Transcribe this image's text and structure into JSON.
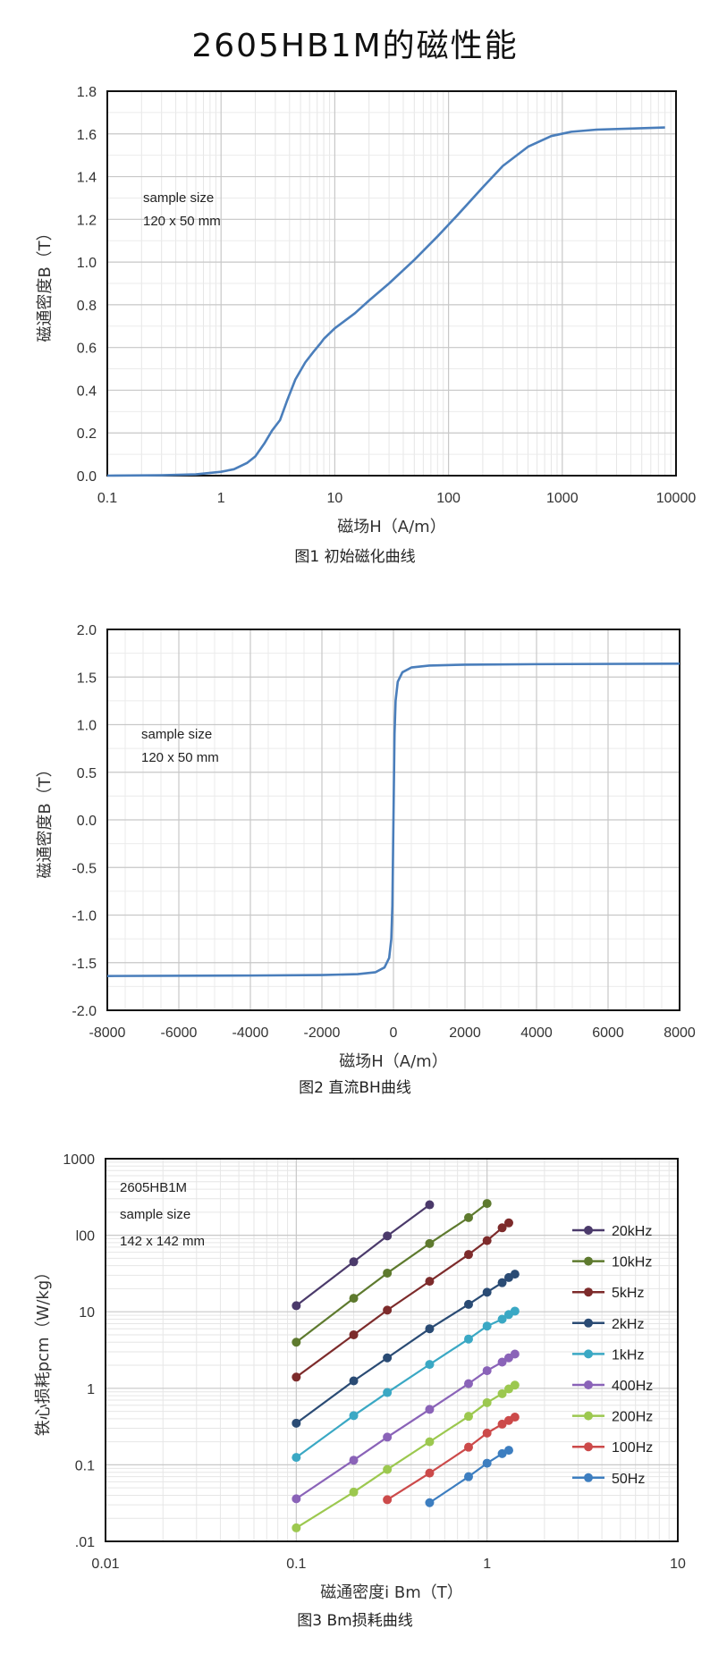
{
  "page": {
    "title": "2605HB1M的磁性能"
  },
  "chart_data": [
    {
      "id": "chart1",
      "type": "line",
      "caption": "图1 初始磁化曲线",
      "xlabel": "磁场H（A/m）",
      "ylabel": "磁通密度B（T）",
      "xscale": "log",
      "xlim": [
        0.1,
        10000
      ],
      "ylim": [
        0,
        1.8
      ],
      "xticks": [
        0.1,
        1,
        10,
        100,
        1000,
        10000
      ],
      "xtick_labels": [
        "0.1",
        "1",
        "10",
        "100",
        "1000",
        "10000"
      ],
      "yticks": [
        0,
        0.2,
        0.4,
        0.6,
        0.8,
        1.0,
        1.2,
        1.4,
        1.6,
        1.8
      ],
      "ytick_labels": [
        "0.0",
        "0.2",
        "0.4",
        "0.6",
        "0.8",
        "1.0",
        "1.2",
        "1.4",
        "1.6",
        "1.8"
      ],
      "grid": true,
      "note": [
        "sample size",
        "120 x 50 mm"
      ],
      "series": [
        {
          "color": "#4a7ebb",
          "x": [
            0.1,
            0.3,
            0.6,
            1.0,
            1.3,
            1.7,
            2.0,
            2.4,
            2.8,
            3.3,
            3.8,
            4.5,
            5.5,
            6.5,
            7.5,
            8.0,
            10,
            15,
            20,
            30,
            50,
            80,
            120,
            200,
            300,
            500,
            800,
            1200,
            2000,
            4000,
            8000
          ],
          "y": [
            0.0,
            0.002,
            0.006,
            0.018,
            0.03,
            0.06,
            0.09,
            0.15,
            0.21,
            0.26,
            0.35,
            0.45,
            0.53,
            0.58,
            0.62,
            0.64,
            0.69,
            0.76,
            0.82,
            0.9,
            1.01,
            1.12,
            1.22,
            1.35,
            1.45,
            1.54,
            1.59,
            1.61,
            1.62,
            1.625,
            1.63
          ]
        }
      ]
    },
    {
      "id": "chart2",
      "type": "line",
      "caption": "图2 直流BH曲线",
      "xlabel": "磁场H（A/m）",
      "ylabel": "磁通密度B（T）",
      "xlim": [
        -8000,
        8000
      ],
      "ylim": [
        -2.0,
        2.0
      ],
      "xticks": [
        -8000,
        -6000,
        -4000,
        -2000,
        0,
        2000,
        4000,
        6000,
        8000
      ],
      "xtick_labels": [
        "-8000",
        "-6000",
        "-4000",
        "-2000",
        "0",
        "2000",
        "4000",
        "6000",
        "8000"
      ],
      "yticks": [
        -2.0,
        -1.5,
        -1.0,
        -0.5,
        0,
        0.5,
        1.0,
        1.5,
        2.0
      ],
      "ytick_labels": [
        "-2.0",
        "-1.5",
        "-1.0",
        "-0.5",
        "0.0",
        "0.5",
        "1.0",
        "1.5",
        "2.0"
      ],
      "grid": true,
      "note": [
        "sample size",
        "120 x 50 mm"
      ],
      "series": [
        {
          "color": "#4a7ebb",
          "x": [
            -8000,
            -4000,
            -2000,
            -1000,
            -500,
            -250,
            -120,
            -60,
            -30,
            -10,
            0,
            10,
            30,
            60,
            120,
            250,
            500,
            1000,
            2000,
            4000,
            8000
          ],
          "y": [
            -1.64,
            -1.635,
            -1.63,
            -1.62,
            -1.6,
            -1.55,
            -1.45,
            -1.25,
            -0.9,
            -0.3,
            0.0,
            0.3,
            0.9,
            1.25,
            1.45,
            1.55,
            1.6,
            1.62,
            1.63,
            1.635,
            1.64
          ]
        }
      ]
    },
    {
      "id": "chart3",
      "type": "line",
      "caption": "图3 Bm损耗曲线",
      "xlabel": "磁通密度i Bm（T）",
      "ylabel": "铁心损耗pcm（W/kg）",
      "xscale": "log",
      "yscale": "log",
      "xlim": [
        0.01,
        10
      ],
      "ylim": [
        0.01,
        1000
      ],
      "xticks": [
        0.01,
        0.1,
        1,
        10
      ],
      "xtick_labels": [
        "0.01",
        "0.1",
        "1",
        "10"
      ],
      "yticks": [
        0.01,
        0.1,
        1,
        10,
        100,
        1000
      ],
      "ytick_labels": [
        ".01",
        "0.1",
        "1",
        "10",
        "l00",
        "1000"
      ],
      "grid": true,
      "legend": "right",
      "note": [
        "2605HB1M",
        "sample size",
        "142 x 142 mm"
      ],
      "series": [
        {
          "name": "20kHz",
          "color": "#4b3a6b",
          "x": [
            0.1,
            0.2,
            0.3,
            0.5
          ],
          "y": [
            12,
            45,
            98,
            250
          ]
        },
        {
          "name": "10kHz",
          "color": "#5e7a2e",
          "x": [
            0.1,
            0.2,
            0.3,
            0.5,
            0.8,
            1.0
          ],
          "y": [
            4,
            15,
            32,
            78,
            170,
            260
          ]
        },
        {
          "name": "5kHz",
          "color": "#7d2b2b",
          "x": [
            0.1,
            0.2,
            0.3,
            0.5,
            0.8,
            1.0,
            1.2,
            1.3
          ],
          "y": [
            1.4,
            5,
            10.5,
            25,
            56,
            85,
            125,
            145
          ]
        },
        {
          "name": "2kHz",
          "color": "#2a4b74",
          "x": [
            0.1,
            0.2,
            0.3,
            0.5,
            0.8,
            1.0,
            1.2,
            1.3,
            1.4
          ],
          "y": [
            0.35,
            1.25,
            2.5,
            6,
            12.5,
            18,
            24,
            28,
            31
          ]
        },
        {
          "name": "1kHz",
          "color": "#3aa8c4",
          "x": [
            0.1,
            0.2,
            0.3,
            0.5,
            0.8,
            1.0,
            1.2,
            1.3,
            1.4
          ],
          "y": [
            0.125,
            0.44,
            0.88,
            2.05,
            4.4,
            6.5,
            8.0,
            9.2,
            10.2
          ]
        },
        {
          "name": "400Hz",
          "color": "#8a63b8",
          "x": [
            0.1,
            0.2,
            0.3,
            0.5,
            0.8,
            1.0,
            1.2,
            1.3,
            1.4
          ],
          "y": [
            0.036,
            0.115,
            0.23,
            0.53,
            1.15,
            1.7,
            2.2,
            2.5,
            2.8
          ]
        },
        {
          "name": "200Hz",
          "color": "#9cc84f",
          "x": [
            0.1,
            0.2,
            0.3,
            0.5,
            0.8,
            1.0,
            1.2,
            1.3,
            1.4
          ],
          "y": [
            0.015,
            0.044,
            0.087,
            0.2,
            0.43,
            0.65,
            0.85,
            0.98,
            1.1
          ]
        },
        {
          "name": "100Hz",
          "color": "#cc4a4a",
          "x": [
            0.3,
            0.5,
            0.8,
            1.0,
            1.2,
            1.3,
            1.4
          ],
          "y": [
            0.035,
            0.078,
            0.17,
            0.26,
            0.34,
            0.38,
            0.42
          ]
        },
        {
          "name": "50Hz",
          "color": "#3d7ec0",
          "x": [
            0.5,
            0.8,
            1.0,
            1.2,
            1.3
          ],
          "y": [
            0.032,
            0.07,
            0.105,
            0.14,
            0.155
          ]
        }
      ]
    }
  ]
}
